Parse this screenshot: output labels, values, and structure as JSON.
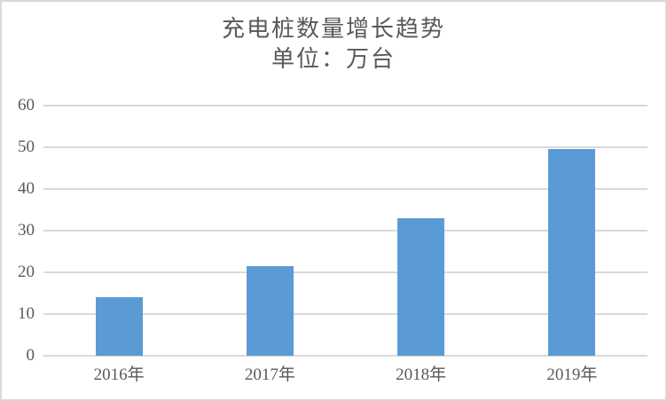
{
  "chart_data": {
    "type": "bar",
    "title": "充电桩数量增长趋势",
    "subtitle": "单位：万台",
    "categories": [
      "2016年",
      "2017年",
      "2018年",
      "2019年"
    ],
    "values": [
      14,
      21.5,
      33,
      49.5
    ],
    "xlabel": "",
    "ylabel": "",
    "ylim": [
      0,
      60
    ],
    "yticks": [
      0,
      10,
      20,
      30,
      40,
      50,
      60
    ],
    "grid": true,
    "legend": false,
    "bar_color": "#5B9BD5",
    "gridline_color": "#D9D9D9",
    "axis_line_color": "#D9D9D9",
    "text_color": "#595959",
    "background_color": "#FFFFFF",
    "border_color": "#D9D9D9"
  }
}
